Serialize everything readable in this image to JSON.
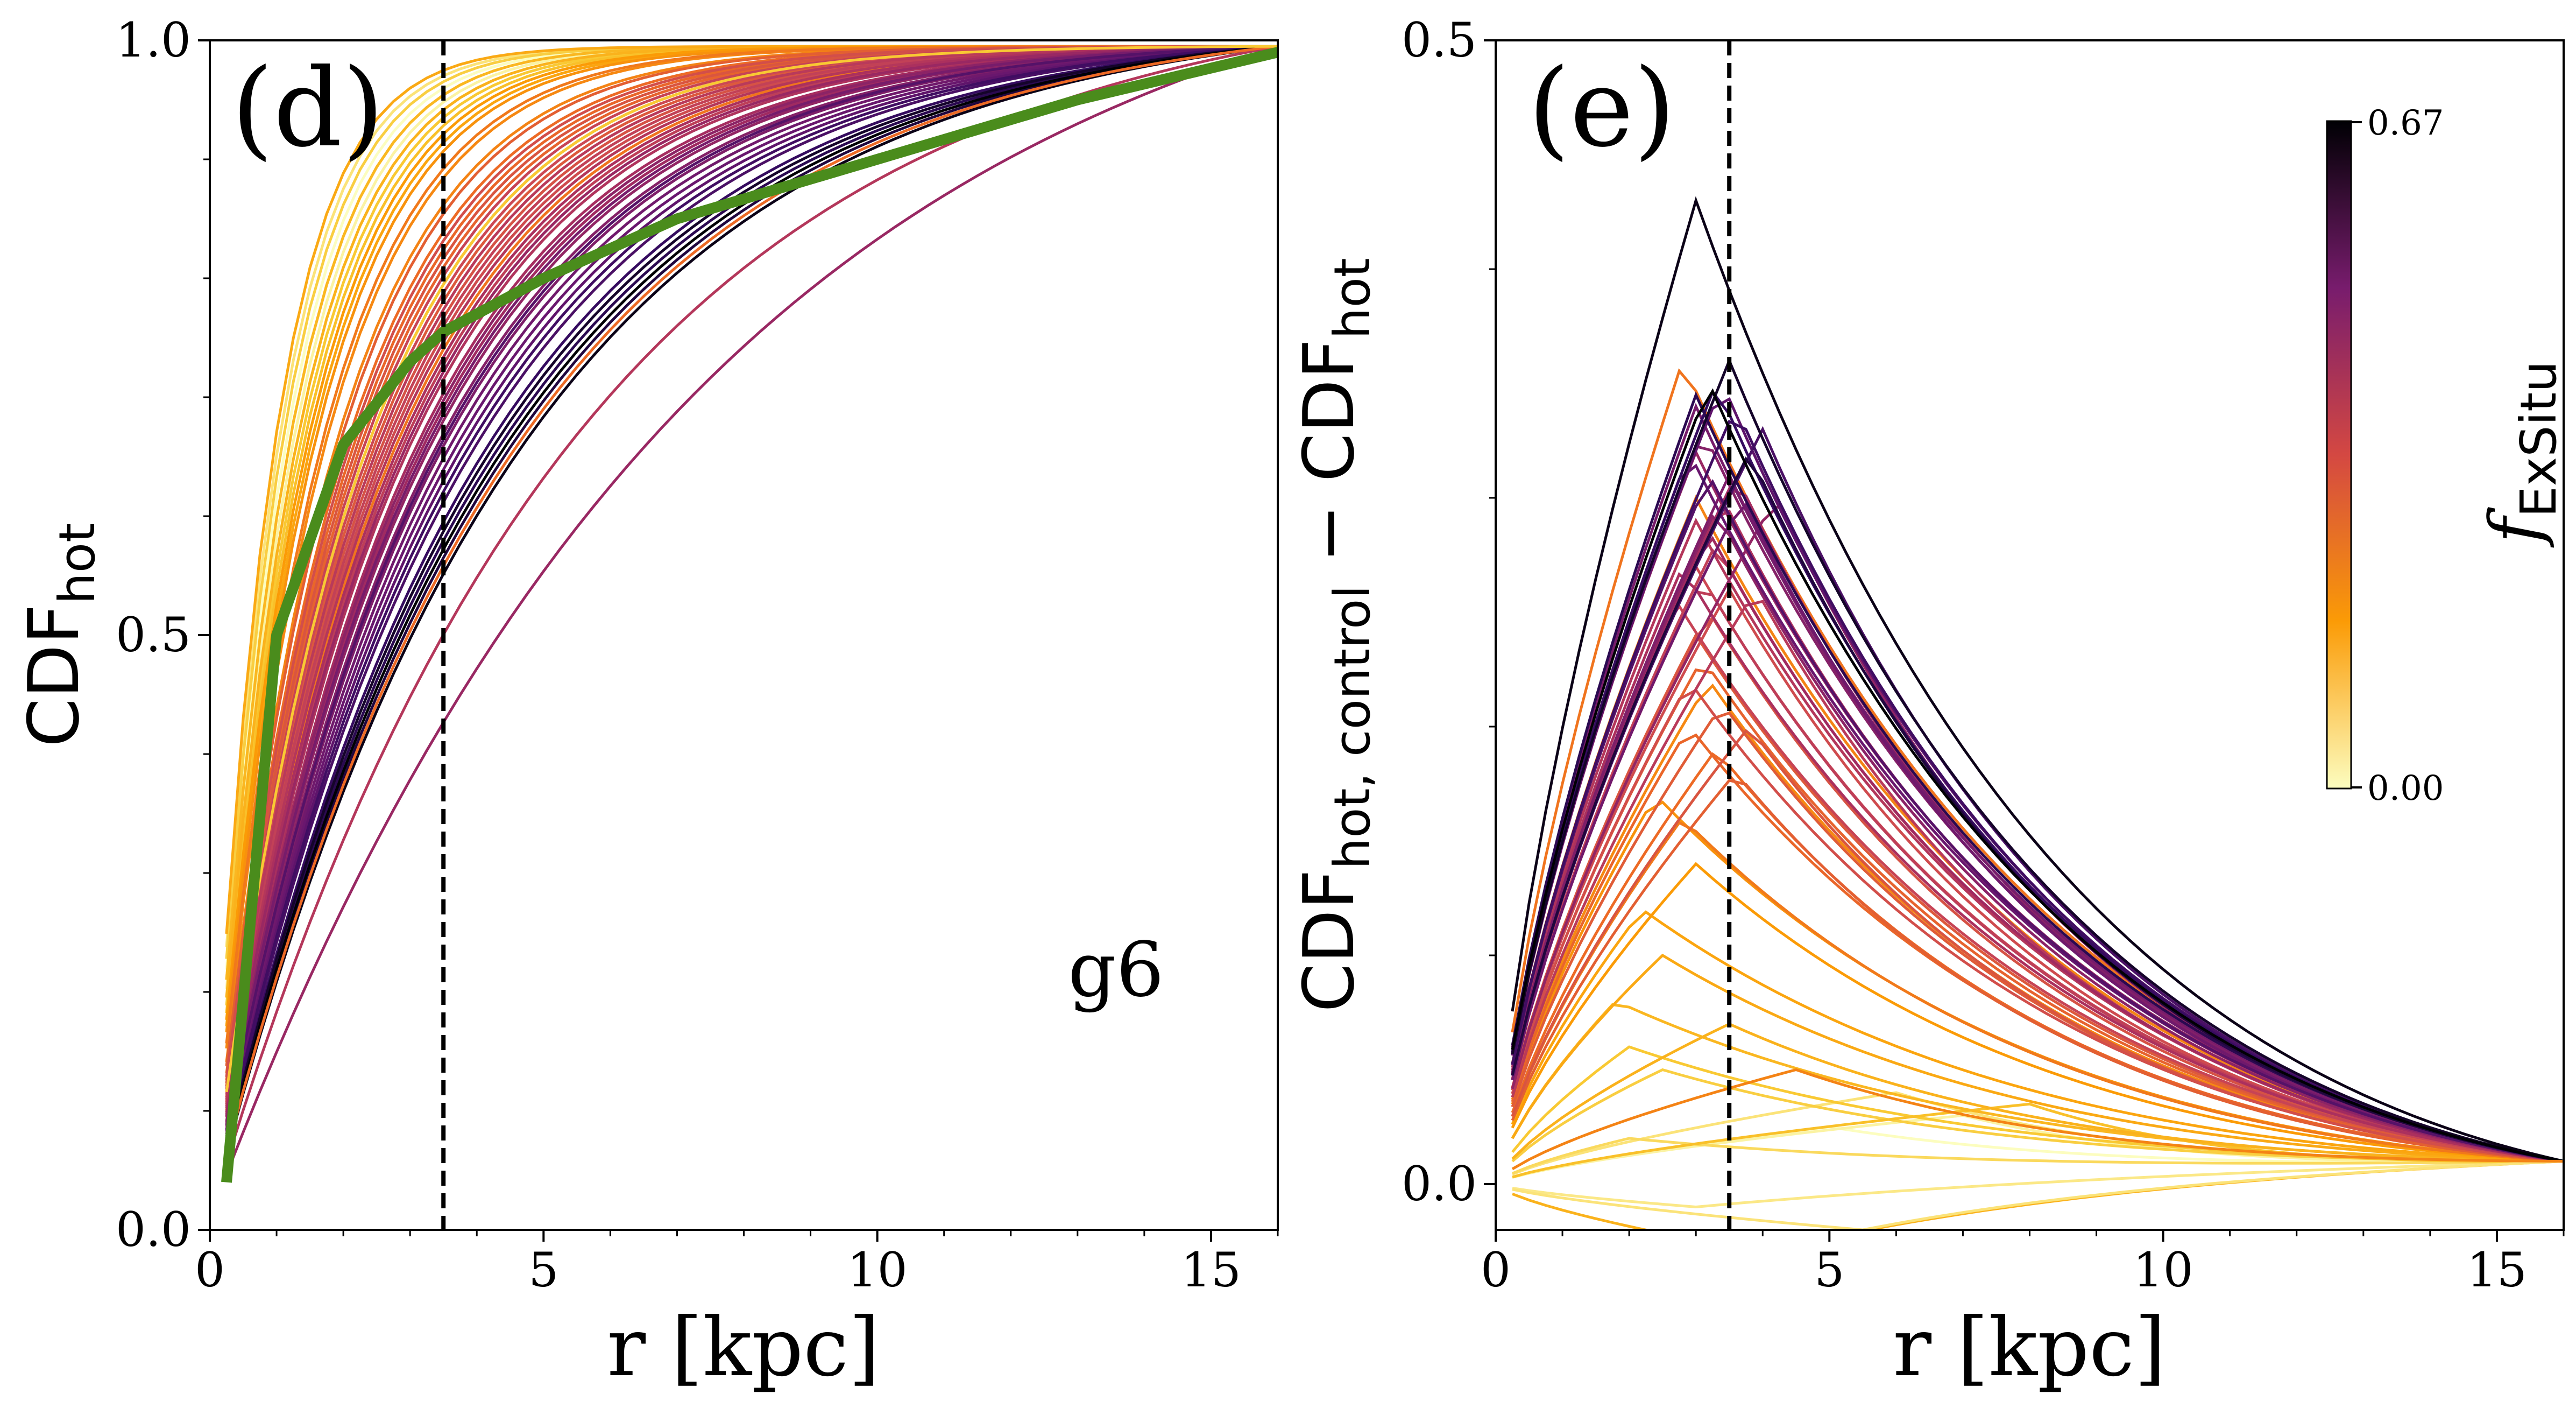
{
  "colors": {
    "zero": "#fcfdbf",
    "low": "#fb9b06",
    "mid": "#b53679",
    "high": "#000004",
    "reference_curve": "#4a8c1c",
    "axis": "#000000",
    "divider": "#000000"
  },
  "chart_data": [
    {
      "type": "line",
      "panel_label": "(d)",
      "annotation": "g6",
      "xlabel": "r [kpc]",
      "ylabel_main": "CDF",
      "ylabel_sub": "hot",
      "xlim": [
        0,
        16
      ],
      "ylim": [
        0,
        1
      ],
      "xticks": [
        0,
        5,
        10,
        15
      ],
      "xtick_labels": [
        "0",
        "5",
        "10",
        "15"
      ],
      "yticks": [
        0,
        0.5,
        1
      ],
      "ytick_labels": [
        "0.0",
        "0.5",
        "1.0"
      ],
      "vline_x": 3.5,
      "reference_curve": {
        "name": "green median (low f_ExSitu)",
        "x": [
          0.25,
          1,
          2,
          3,
          3.5,
          5,
          7,
          10,
          13,
          16
        ],
        "y": [
          0.04,
          0.5,
          0.66,
          0.73,
          0.755,
          0.8,
          0.85,
          0.9,
          0.95,
          0.99
        ]
      },
      "series_summary": "About 60 CDF curves of hot gas, coloured by f_ExSitu (0 to 0.67); low f_ExSitu curves rise fastest, high f_ExSitu curves rise slowest; all reach ~1 at 16 kpc",
      "series": [
        {
          "f": 0.0,
          "k": 1.05
        },
        {
          "f": 0.02,
          "k": 1.15
        },
        {
          "f": 0.04,
          "k": 1.2
        },
        {
          "f": 0.05,
          "k": 0.95
        },
        {
          "f": 0.07,
          "k": 1.1
        },
        {
          "f": 0.09,
          "k": 1.0
        },
        {
          "f": 0.1,
          "k": 1.25
        },
        {
          "f": 0.12,
          "k": 1.3
        },
        {
          "f": 0.14,
          "k": 1.1
        },
        {
          "f": 0.15,
          "k": 1.2
        },
        {
          "f": 0.17,
          "k": 0.9
        },
        {
          "f": 0.18,
          "k": 1.4
        },
        {
          "f": 0.2,
          "k": 1.35
        },
        {
          "f": 0.22,
          "k": 1.45
        },
        {
          "f": 0.24,
          "k": 1.6
        },
        {
          "f": 0.25,
          "k": 1.75
        },
        {
          "f": 0.27,
          "k": 1.55
        },
        {
          "f": 0.28,
          "k": 2.6
        },
        {
          "f": 0.3,
          "k": 1.9
        },
        {
          "f": 0.31,
          "k": 2.0
        },
        {
          "f": 0.32,
          "k": 2.1
        },
        {
          "f": 0.33,
          "k": 1.8
        },
        {
          "f": 0.34,
          "k": 2.2
        },
        {
          "f": 0.35,
          "k": 2.3
        },
        {
          "f": 0.36,
          "k": 2.05
        },
        {
          "f": 0.37,
          "k": 2.4
        },
        {
          "f": 0.38,
          "k": 1.95
        },
        {
          "f": 0.39,
          "k": 2.5
        },
        {
          "f": 0.4,
          "k": 2.25
        },
        {
          "f": 0.41,
          "k": 2.15
        },
        {
          "f": 0.42,
          "k": 2.45
        },
        {
          "f": 0.43,
          "k": 2.7
        },
        {
          "f": 0.44,
          "k": 2.35
        },
        {
          "f": 0.45,
          "k": 2.55
        },
        {
          "f": 0.46,
          "k": 2.8
        },
        {
          "f": 0.47,
          "k": 2.65
        },
        {
          "f": 0.48,
          "k": 2.9
        },
        {
          "f": 0.49,
          "k": 3.0
        },
        {
          "f": 0.5,
          "k": 2.75
        },
        {
          "f": 0.51,
          "k": 3.1
        },
        {
          "f": 0.52,
          "k": 2.95
        },
        {
          "f": 0.53,
          "k": 3.2
        },
        {
          "f": 0.54,
          "k": 3.3
        },
        {
          "f": 0.55,
          "k": 3.05
        },
        {
          "f": 0.56,
          "k": 3.4
        },
        {
          "f": 0.57,
          "k": 3.5
        },
        {
          "f": 0.58,
          "k": 3.6
        },
        {
          "f": 0.59,
          "k": 3.25
        },
        {
          "f": 0.6,
          "k": 3.8
        },
        {
          "f": 0.61,
          "k": 3.7
        },
        {
          "f": 0.62,
          "k": 4.0
        },
        {
          "f": 0.63,
          "k": 4.2
        },
        {
          "f": 0.64,
          "k": 4.4
        },
        {
          "f": 0.65,
          "k": 4.1
        },
        {
          "f": 0.66,
          "k": 4.6
        },
        {
          "f": 0.67,
          "k": 4.3
        },
        {
          "f": 0.5,
          "k": 7.5
        },
        {
          "f": 0.45,
          "k": 5.5
        },
        {
          "f": 0.3,
          "k": 4.5
        },
        {
          "f": 0.1,
          "k": 2.2
        }
      ]
    },
    {
      "type": "line",
      "panel_label": "(e)",
      "xlabel": "r [kpc]",
      "ylabel_main_a": "CDF",
      "ylabel_sub_a": "hot, control",
      "ylabel_op": " − ",
      "ylabel_main_b": "CDF",
      "ylabel_sub_b": "hot",
      "xlim": [
        0,
        16
      ],
      "ylim": [
        -0.02,
        0.5
      ],
      "xticks": [
        0,
        5,
        10,
        15
      ],
      "xtick_labels": [
        "0",
        "5",
        "10",
        "15"
      ],
      "yticks": [
        0,
        0.5
      ],
      "ytick_labels": [
        "0.0",
        "0.5"
      ],
      "vline_x": 3.5,
      "series_summary": "Differences of hot-gas CDF relative to control, one curve per galaxy coloured by f_ExSitu; peaks near r≈3 kpc, max ≈0.43; low f_ExSitu curves near or below zero",
      "series": [
        {
          "f": 0.0,
          "peak": 0.025,
          "rp": 5.0
        },
        {
          "f": 0.02,
          "peak": 0.03,
          "rp": 7.0
        },
        {
          "f": 0.04,
          "peak": -0.01,
          "rp": 3.0
        },
        {
          "f": 0.05,
          "peak": 0.04,
          "rp": 6.0
        },
        {
          "f": 0.07,
          "peak": 0.02,
          "rp": 2.0
        },
        {
          "f": 0.09,
          "peak": 0.05,
          "rp": 2.5
        },
        {
          "f": 0.1,
          "peak": 0.06,
          "rp": 2.0
        },
        {
          "f": 0.12,
          "peak": 0.035,
          "rp": 8.0
        },
        {
          "f": 0.14,
          "peak": 0.08,
          "rp": 1.8
        },
        {
          "f": 0.15,
          "peak": 0.07,
          "rp": 3.5
        },
        {
          "f": 0.17,
          "peak": 0.1,
          "rp": 2.5
        },
        {
          "f": 0.18,
          "peak": 0.12,
          "rp": 2.2
        },
        {
          "f": 0.2,
          "peak": 0.14,
          "rp": 3.0
        },
        {
          "f": 0.22,
          "peak": 0.17,
          "rp": 2.4
        },
        {
          "f": 0.24,
          "peak": 0.22,
          "rp": 3.2
        },
        {
          "f": 0.25,
          "peak": 0.3,
          "rp": 3.0
        },
        {
          "f": 0.27,
          "peak": 0.16,
          "rp": 2.8
        },
        {
          "f": 0.28,
          "peak": 0.36,
          "rp": 2.8
        },
        {
          "f": 0.3,
          "peak": 0.19,
          "rp": 3.3
        },
        {
          "f": 0.31,
          "peak": 0.2,
          "rp": 2.9
        },
        {
          "f": 0.32,
          "peak": 0.23,
          "rp": 3.1
        },
        {
          "f": 0.33,
          "peak": 0.18,
          "rp": 3.6
        },
        {
          "f": 0.34,
          "peak": 0.21,
          "rp": 3.4
        },
        {
          "f": 0.35,
          "peak": 0.24,
          "rp": 3.0
        },
        {
          "f": 0.36,
          "peak": 0.2,
          "rp": 3.8
        },
        {
          "f": 0.37,
          "peak": 0.25,
          "rp": 3.2
        },
        {
          "f": 0.38,
          "peak": 0.22,
          "rp": 2.9
        },
        {
          "f": 0.39,
          "peak": 0.26,
          "rp": 3.5
        },
        {
          "f": 0.4,
          "peak": 0.27,
          "rp": 3.0
        },
        {
          "f": 0.41,
          "peak": 0.255,
          "rp": 2.7
        },
        {
          "f": 0.42,
          "peak": 0.28,
          "rp": 3.3
        },
        {
          "f": 0.43,
          "peak": 0.265,
          "rp": 3.1
        },
        {
          "f": 0.44,
          "peak": 0.26,
          "rp": 3.9
        },
        {
          "f": 0.45,
          "peak": 0.29,
          "rp": 3.0
        },
        {
          "f": 0.46,
          "peak": 0.3,
          "rp": 3.4
        },
        {
          "f": 0.47,
          "peak": 0.27,
          "rp": 2.8
        },
        {
          "f": 0.48,
          "peak": 0.31,
          "rp": 3.6
        },
        {
          "f": 0.49,
          "peak": 0.285,
          "rp": 3.2
        },
        {
          "f": 0.5,
          "peak": 0.32,
          "rp": 3.0
        },
        {
          "f": 0.51,
          "peak": 0.3,
          "rp": 4.2
        },
        {
          "f": 0.52,
          "peak": 0.295,
          "rp": 3.3
        },
        {
          "f": 0.53,
          "peak": 0.33,
          "rp": 3.1
        },
        {
          "f": 0.54,
          "peak": 0.31,
          "rp": 3.5
        },
        {
          "f": 0.55,
          "peak": 0.34,
          "rp": 3.0
        },
        {
          "f": 0.56,
          "peak": 0.3,
          "rp": 3.7
        },
        {
          "f": 0.57,
          "peak": 0.32,
          "rp": 2.9
        },
        {
          "f": 0.58,
          "peak": 0.35,
          "rp": 3.4
        },
        {
          "f": 0.59,
          "peak": 0.31,
          "rp": 3.2
        },
        {
          "f": 0.6,
          "peak": 0.33,
          "rp": 4.0
        },
        {
          "f": 0.61,
          "peak": 0.34,
          "rp": 3.6
        },
        {
          "f": 0.62,
          "peak": 0.35,
          "rp": 3.3
        },
        {
          "f": 0.63,
          "peak": 0.345,
          "rp": 3.0
        },
        {
          "f": 0.64,
          "peak": 0.32,
          "rp": 3.8
        },
        {
          "f": 0.65,
          "peak": 0.36,
          "rp": 3.5
        },
        {
          "f": 0.66,
          "peak": 0.43,
          "rp": 3.0
        },
        {
          "f": 0.67,
          "peak": 0.35,
          "rp": 3.2
        },
        {
          "f": 0.15,
          "peak": -0.03,
          "rp": 4.0
        },
        {
          "f": 0.05,
          "peak": -0.02,
          "rp": 5.5
        },
        {
          "f": 0.25,
          "peak": 0.05,
          "rp": 4.5
        }
      ],
      "colorbar": {
        "label_main": "f",
        "label_sub": "ExSitu",
        "min_label": "0.00",
        "max_label": "0.67",
        "min": 0.0,
        "max": 0.67
      }
    }
  ]
}
